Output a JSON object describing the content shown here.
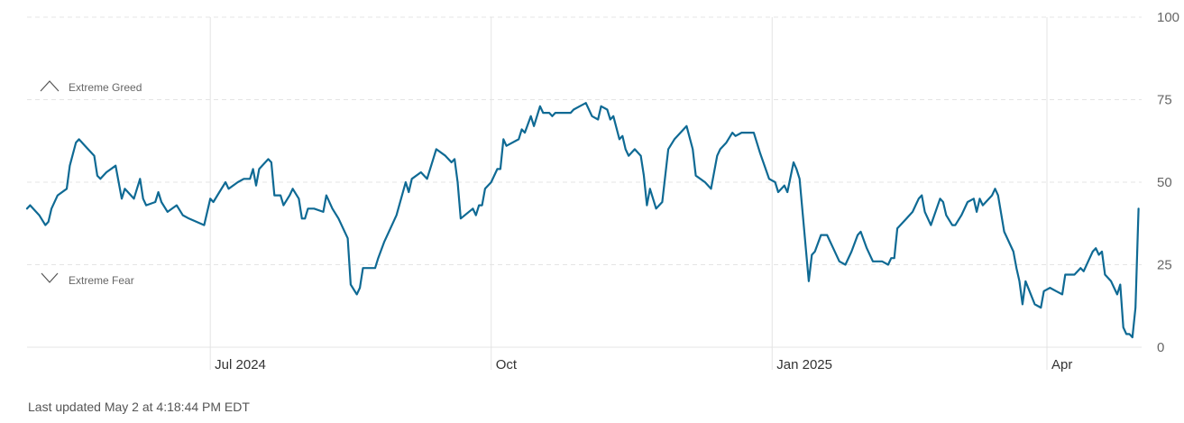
{
  "footer": {
    "last_updated": "Last updated May 2 at 4:18:44 PM EDT"
  },
  "colors": {
    "line": "#0f6a94",
    "grid": "#e4e4e4",
    "text": "#666666"
  },
  "icons": {
    "greed": "chevron-up-icon",
    "fear": "chevron-down-icon"
  },
  "chart_data": {
    "type": "line",
    "title": "",
    "xlabel": "",
    "ylabel": "",
    "ylim": [
      0,
      100
    ],
    "yticks": [
      0,
      25,
      50,
      75,
      100
    ],
    "xticks": [
      {
        "label": "Jul 2024",
        "x": "2024-07-01"
      },
      {
        "label": "Oct",
        "x": "2024-10-01"
      },
      {
        "label": "Jan 2025",
        "x": "2025-01-01"
      },
      {
        "label": "Apr",
        "x": "2025-04-01"
      }
    ],
    "xlim": [
      "2024-05-02",
      "2025-05-02"
    ],
    "zones": [
      {
        "label": "Extreme Greed",
        "icon": "chevron-up-icon"
      },
      {
        "label": "Extreme Fear",
        "icon": "chevron-down-icon"
      }
    ],
    "grid": true,
    "series": [
      {
        "points": [
          [
            "2024-05-02",
            42
          ],
          [
            "2024-05-03",
            43
          ],
          [
            "2024-05-06",
            40
          ],
          [
            "2024-05-08",
            37
          ],
          [
            "2024-05-09",
            38
          ],
          [
            "2024-05-10",
            42
          ],
          [
            "2024-05-12",
            46
          ],
          [
            "2024-05-15",
            48
          ],
          [
            "2024-05-16",
            55
          ],
          [
            "2024-05-18",
            62
          ],
          [
            "2024-05-19",
            63
          ],
          [
            "2024-05-21",
            61
          ],
          [
            "2024-05-24",
            58
          ],
          [
            "2024-05-25",
            52
          ],
          [
            "2024-05-26",
            51
          ],
          [
            "2024-05-28",
            53
          ],
          [
            "2024-05-31",
            55
          ],
          [
            "2024-06-02",
            45
          ],
          [
            "2024-06-03",
            48
          ],
          [
            "2024-06-06",
            45
          ],
          [
            "2024-06-08",
            51
          ],
          [
            "2024-06-09",
            45
          ],
          [
            "2024-06-10",
            43
          ],
          [
            "2024-06-13",
            44
          ],
          [
            "2024-06-14",
            47
          ],
          [
            "2024-06-15",
            44
          ],
          [
            "2024-06-17",
            41
          ],
          [
            "2024-06-20",
            43
          ],
          [
            "2024-06-22",
            40
          ],
          [
            "2024-06-24",
            39
          ],
          [
            "2024-06-29",
            37
          ],
          [
            "2024-07-01",
            45
          ],
          [
            "2024-07-02",
            44
          ],
          [
            "2024-07-04",
            47
          ],
          [
            "2024-07-06",
            50
          ],
          [
            "2024-07-07",
            48
          ],
          [
            "2024-07-10",
            50
          ],
          [
            "2024-07-12",
            51
          ],
          [
            "2024-07-14",
            51
          ],
          [
            "2024-07-15",
            54
          ],
          [
            "2024-07-16",
            49
          ],
          [
            "2024-07-17",
            54
          ],
          [
            "2024-07-20",
            57
          ],
          [
            "2024-07-21",
            56
          ],
          [
            "2024-07-22",
            46
          ],
          [
            "2024-07-24",
            46
          ],
          [
            "2024-07-25",
            43
          ],
          [
            "2024-07-27",
            46
          ],
          [
            "2024-07-28",
            48
          ],
          [
            "2024-07-30",
            45
          ],
          [
            "2024-07-31",
            39
          ],
          [
            "2024-08-01",
            39
          ],
          [
            "2024-08-02",
            42
          ],
          [
            "2024-08-04",
            42
          ],
          [
            "2024-08-07",
            41
          ],
          [
            "2024-08-08",
            46
          ],
          [
            "2024-08-10",
            42
          ],
          [
            "2024-08-12",
            39
          ],
          [
            "2024-08-15",
            33
          ],
          [
            "2024-08-16",
            19
          ],
          [
            "2024-08-18",
            16
          ],
          [
            "2024-08-19",
            18
          ],
          [
            "2024-08-20",
            24
          ],
          [
            "2024-08-22",
            24
          ],
          [
            "2024-08-24",
            24
          ],
          [
            "2024-08-25",
            27
          ],
          [
            "2024-08-27",
            32
          ],
          [
            "2024-08-29",
            36
          ],
          [
            "2024-08-31",
            40
          ],
          [
            "2024-09-03",
            50
          ],
          [
            "2024-09-04",
            47
          ],
          [
            "2024-09-05",
            51
          ],
          [
            "2024-09-08",
            53
          ],
          [
            "2024-09-10",
            51
          ],
          [
            "2024-09-13",
            60
          ],
          [
            "2024-09-16",
            58
          ],
          [
            "2024-09-18",
            56
          ],
          [
            "2024-09-19",
            57
          ],
          [
            "2024-09-20",
            50
          ],
          [
            "2024-09-21",
            39
          ],
          [
            "2024-09-25",
            42
          ],
          [
            "2024-09-26",
            40
          ],
          [
            "2024-09-27",
            43
          ],
          [
            "2024-09-28",
            43
          ],
          [
            "2024-09-29",
            48
          ],
          [
            "2024-10-01",
            50
          ],
          [
            "2024-10-03",
            54
          ],
          [
            "2024-10-04",
            54
          ],
          [
            "2024-10-05",
            63
          ],
          [
            "2024-10-06",
            61
          ],
          [
            "2024-10-10",
            63
          ],
          [
            "2024-10-11",
            66
          ],
          [
            "2024-10-12",
            65
          ],
          [
            "2024-10-14",
            70
          ],
          [
            "2024-10-15",
            67
          ],
          [
            "2024-10-17",
            73
          ],
          [
            "2024-10-18",
            71
          ],
          [
            "2024-10-20",
            71
          ],
          [
            "2024-10-21",
            70
          ],
          [
            "2024-10-22",
            71
          ],
          [
            "2024-10-25",
            71
          ],
          [
            "2024-10-27",
            71
          ],
          [
            "2024-10-28",
            72
          ],
          [
            "2024-10-30",
            73
          ],
          [
            "2024-11-01",
            74
          ],
          [
            "2024-11-03",
            70
          ],
          [
            "2024-11-05",
            69
          ],
          [
            "2024-11-06",
            73
          ],
          [
            "2024-11-08",
            72
          ],
          [
            "2024-11-09",
            69
          ],
          [
            "2024-11-10",
            70
          ],
          [
            "2024-11-12",
            63
          ],
          [
            "2024-11-13",
            64
          ],
          [
            "2024-11-14",
            60
          ],
          [
            "2024-11-15",
            58
          ],
          [
            "2024-11-17",
            60
          ],
          [
            "2024-11-19",
            58
          ],
          [
            "2024-11-20",
            52
          ],
          [
            "2024-11-21",
            43
          ],
          [
            "2024-11-22",
            48
          ],
          [
            "2024-11-24",
            42
          ],
          [
            "2024-11-26",
            44
          ],
          [
            "2024-11-28",
            60
          ],
          [
            "2024-11-30",
            63
          ],
          [
            "2024-12-04",
            67
          ],
          [
            "2024-12-06",
            60
          ],
          [
            "2024-12-07",
            52
          ],
          [
            "2024-12-10",
            50
          ],
          [
            "2024-12-12",
            48
          ],
          [
            "2024-12-14",
            58
          ],
          [
            "2024-12-15",
            60
          ],
          [
            "2024-12-17",
            62
          ],
          [
            "2024-12-19",
            65
          ],
          [
            "2024-12-20",
            64
          ],
          [
            "2024-12-22",
            65
          ],
          [
            "2024-12-26",
            65
          ],
          [
            "2024-12-28",
            59
          ],
          [
            "2024-12-31",
            51
          ],
          [
            "2025-01-02",
            50
          ],
          [
            "2025-01-03",
            47
          ],
          [
            "2025-01-05",
            49
          ],
          [
            "2025-01-06",
            47
          ],
          [
            "2025-01-08",
            56
          ],
          [
            "2025-01-09",
            54
          ],
          [
            "2025-01-10",
            51
          ],
          [
            "2025-01-13",
            20
          ],
          [
            "2025-01-14",
            28
          ],
          [
            "2025-01-15",
            29
          ],
          [
            "2025-01-17",
            34
          ],
          [
            "2025-01-19",
            34
          ],
          [
            "2025-01-21",
            30
          ],
          [
            "2025-01-23",
            26
          ],
          [
            "2025-01-25",
            25
          ],
          [
            "2025-01-27",
            29
          ],
          [
            "2025-01-29",
            34
          ],
          [
            "2025-01-30",
            35
          ],
          [
            "2025-02-01",
            30
          ],
          [
            "2025-02-03",
            26
          ],
          [
            "2025-02-06",
            26
          ],
          [
            "2025-02-08",
            25
          ],
          [
            "2025-02-09",
            27
          ],
          [
            "2025-02-10",
            27
          ],
          [
            "2025-02-11",
            36
          ],
          [
            "2025-02-14",
            39
          ],
          [
            "2025-02-16",
            41
          ],
          [
            "2025-02-18",
            45
          ],
          [
            "2025-02-19",
            46
          ],
          [
            "2025-02-20",
            41
          ],
          [
            "2025-02-22",
            37
          ],
          [
            "2025-02-25",
            45
          ],
          [
            "2025-02-26",
            44
          ],
          [
            "2025-02-27",
            40
          ],
          [
            "2025-03-01",
            37
          ],
          [
            "2025-03-02",
            37
          ],
          [
            "2025-03-04",
            40
          ],
          [
            "2025-03-06",
            44
          ],
          [
            "2025-03-08",
            45
          ],
          [
            "2025-03-09",
            41
          ],
          [
            "2025-03-10",
            45
          ],
          [
            "2025-03-11",
            43
          ],
          [
            "2025-03-14",
            46
          ],
          [
            "2025-03-15",
            48
          ],
          [
            "2025-03-16",
            46
          ],
          [
            "2025-03-18",
            35
          ],
          [
            "2025-03-21",
            29
          ],
          [
            "2025-03-22",
            24
          ],
          [
            "2025-03-23",
            20
          ],
          [
            "2025-03-24",
            13
          ],
          [
            "2025-03-25",
            20
          ],
          [
            "2025-03-28",
            13
          ],
          [
            "2025-03-30",
            12
          ],
          [
            "2025-03-31",
            17
          ],
          [
            "2025-04-02",
            18
          ],
          [
            "2025-04-04",
            17
          ],
          [
            "2025-04-06",
            16
          ],
          [
            "2025-04-07",
            22
          ],
          [
            "2025-04-08",
            22
          ],
          [
            "2025-04-10",
            22
          ],
          [
            "2025-04-12",
            24
          ],
          [
            "2025-04-13",
            23
          ],
          [
            "2025-04-15",
            27
          ],
          [
            "2025-04-16",
            29
          ],
          [
            "2025-04-17",
            30
          ],
          [
            "2025-04-18",
            28
          ],
          [
            "2025-04-19",
            29
          ],
          [
            "2025-04-20",
            22
          ],
          [
            "2025-04-22",
            20
          ],
          [
            "2025-04-23",
            18
          ],
          [
            "2025-04-24",
            16
          ],
          [
            "2025-04-25",
            19
          ],
          [
            "2025-04-26",
            6
          ],
          [
            "2025-04-27",
            4
          ],
          [
            "2025-04-28",
            4
          ],
          [
            "2025-04-29",
            3
          ],
          [
            "2025-04-30",
            12
          ],
          [
            "2025-05-01",
            42
          ]
        ]
      }
    ]
  }
}
